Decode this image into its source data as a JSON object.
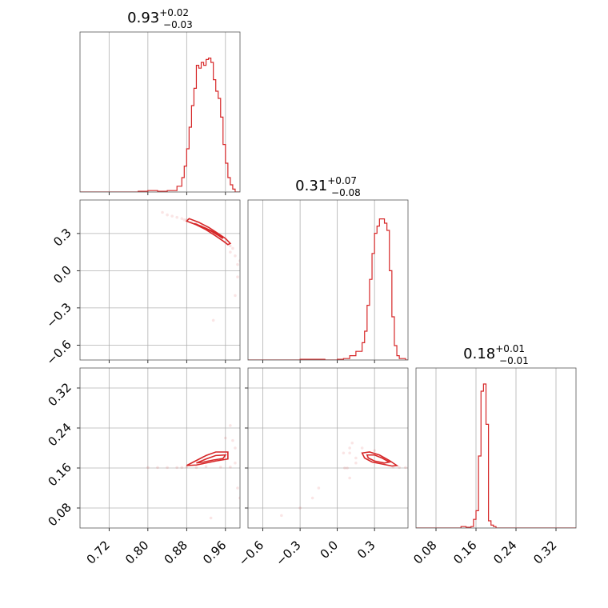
{
  "chart_data": {
    "type": "corner",
    "color": "#d62728",
    "params": [
      {
        "median": "0.93",
        "plus": "+0.02",
        "minus": "−0.03",
        "range": [
          0.66,
          0.99
        ],
        "ticks": [
          0.72,
          0.8,
          0.88,
          0.96
        ],
        "tick_labels": [
          "0.72",
          "0.80",
          "0.88",
          "0.96"
        ]
      },
      {
        "median": "0.31",
        "plus": "+0.07",
        "minus": "−0.08",
        "range": [
          -0.72,
          0.57
        ],
        "ticks": [
          -0.6,
          -0.3,
          0.0,
          0.3
        ],
        "tick_labels": [
          "−0.6",
          "−0.3",
          "0.0",
          "0.3"
        ]
      },
      {
        "median": "0.18",
        "plus": "+0.01",
        "minus": "−0.01",
        "range": [
          0.04,
          0.36
        ],
        "ticks": [
          0.08,
          0.16,
          0.24,
          0.32
        ],
        "tick_labels": [
          "0.08",
          "0.16",
          "0.24",
          "0.32"
        ]
      }
    ],
    "histograms": [
      {
        "x": [
          0.66,
          0.7,
          0.74,
          0.78,
          0.8,
          0.82,
          0.84,
          0.86,
          0.87,
          0.875,
          0.88,
          0.885,
          0.89,
          0.895,
          0.9,
          0.905,
          0.91,
          0.915,
          0.92,
          0.925,
          0.93,
          0.935,
          0.94,
          0.945,
          0.95,
          0.955,
          0.96,
          0.965,
          0.97,
          0.975,
          0.98,
          0.985
        ],
        "y": [
          0.0,
          0.0,
          0.0,
          0.005,
          0.01,
          0.005,
          0.01,
          0.04,
          0.1,
          0.18,
          0.3,
          0.45,
          0.6,
          0.72,
          0.88,
          0.86,
          0.9,
          0.88,
          0.92,
          0.93,
          0.9,
          0.78,
          0.7,
          0.65,
          0.52,
          0.33,
          0.2,
          0.1,
          0.05,
          0.02,
          0.0,
          0.0
        ]
      },
      {
        "x": [
          -0.72,
          -0.6,
          -0.3,
          -0.1,
          0.0,
          0.05,
          0.1,
          0.15,
          0.2,
          0.22,
          0.24,
          0.26,
          0.28,
          0.3,
          0.32,
          0.34,
          0.36,
          0.38,
          0.4,
          0.42,
          0.44,
          0.46,
          0.48,
          0.5,
          0.55
        ],
        "y": [
          0.0,
          0.0,
          0.005,
          0.0,
          0.005,
          0.01,
          0.03,
          0.06,
          0.12,
          0.2,
          0.38,
          0.56,
          0.74,
          0.88,
          0.93,
          0.98,
          0.98,
          0.95,
          0.9,
          0.62,
          0.3,
          0.1,
          0.03,
          0.01,
          0.0
        ]
      },
      {
        "x": [
          0.04,
          0.13,
          0.14,
          0.15,
          0.155,
          0.16,
          0.165,
          0.17,
          0.175,
          0.18,
          0.185,
          0.19,
          0.195,
          0.2,
          0.21,
          0.36
        ],
        "y": [
          0.0,
          0.01,
          0.005,
          0.01,
          0.06,
          0.12,
          0.5,
          0.95,
          1.0,
          0.72,
          0.05,
          0.02,
          0.01,
          0.0,
          0.0,
          0.0
        ]
      }
    ],
    "pairs": [
      {
        "x_param": 0,
        "y_param": 1,
        "contours": [
          [
            [
              0.88,
              0.4
            ],
            [
              0.9,
              0.37
            ],
            [
              0.92,
              0.33
            ],
            [
              0.94,
              0.28
            ],
            [
              0.955,
              0.24
            ],
            [
              0.965,
              0.21
            ],
            [
              0.97,
              0.22
            ],
            [
              0.96,
              0.26
            ],
            [
              0.945,
              0.3
            ],
            [
              0.925,
              0.35
            ],
            [
              0.905,
              0.39
            ],
            [
              0.885,
              0.42
            ]
          ],
          [
            [
              0.895,
              0.38
            ],
            [
              0.91,
              0.355
            ],
            [
              0.93,
              0.32
            ],
            [
              0.945,
              0.285
            ],
            [
              0.955,
              0.26
            ],
            [
              0.95,
              0.28
            ],
            [
              0.935,
              0.315
            ],
            [
              0.915,
              0.35
            ],
            [
              0.9,
              0.375
            ]
          ]
        ],
        "points": [
          [
            0.83,
            0.47
          ],
          [
            0.84,
            0.45
          ],
          [
            0.85,
            0.44
          ],
          [
            0.86,
            0.43
          ],
          [
            0.87,
            0.42
          ],
          [
            0.875,
            0.41
          ],
          [
            0.88,
            0.41
          ],
          [
            0.89,
            0.39
          ],
          [
            0.9,
            0.38
          ],
          [
            0.91,
            0.36
          ],
          [
            0.92,
            0.34
          ],
          [
            0.93,
            0.32
          ],
          [
            0.94,
            0.29
          ],
          [
            0.95,
            0.26
          ],
          [
            0.96,
            0.23
          ],
          [
            0.97,
            0.2
          ],
          [
            0.975,
            0.18
          ],
          [
            0.98,
            0.12
          ],
          [
            0.985,
            0.05
          ],
          [
            0.985,
            -0.05
          ],
          [
            0.98,
            -0.2
          ],
          [
            0.935,
            -0.4
          ],
          [
            0.99,
            0.08
          ],
          [
            0.97,
            0.15
          ]
        ]
      },
      {
        "x_param": 0,
        "y_param": 2,
        "contours": [
          [
            [
              0.88,
              0.165
            ],
            [
              0.9,
              0.175
            ],
            [
              0.92,
              0.185
            ],
            [
              0.94,
              0.192
            ],
            [
              0.965,
              0.192
            ],
            [
              0.965,
              0.178
            ],
            [
              0.94,
              0.174
            ],
            [
              0.92,
              0.17
            ],
            [
              0.9,
              0.166
            ]
          ],
          [
            [
              0.9,
              0.17
            ],
            [
              0.92,
              0.178
            ],
            [
              0.94,
              0.185
            ],
            [
              0.96,
              0.186
            ],
            [
              0.955,
              0.179
            ],
            [
              0.935,
              0.176
            ],
            [
              0.915,
              0.172
            ]
          ]
        ],
        "points": [
          [
            0.8,
            0.161
          ],
          [
            0.82,
            0.161
          ],
          [
            0.84,
            0.161
          ],
          [
            0.86,
            0.161
          ],
          [
            0.87,
            0.161
          ],
          [
            0.88,
            0.162
          ],
          [
            0.9,
            0.161
          ],
          [
            0.92,
            0.163
          ],
          [
            0.95,
            0.162
          ],
          [
            0.97,
            0.162
          ],
          [
            0.98,
            0.17
          ],
          [
            0.98,
            0.2
          ],
          [
            0.975,
            0.215
          ],
          [
            0.96,
            0.22
          ],
          [
            0.985,
            0.12
          ],
          [
            0.99,
            0.1
          ],
          [
            0.93,
            0.06
          ],
          [
            0.97,
            0.245
          ]
        ]
      },
      {
        "x_param": 1,
        "y_param": 2,
        "contours": [
          [
            [
              0.2,
              0.19
            ],
            [
              0.26,
              0.192
            ],
            [
              0.34,
              0.186
            ],
            [
              0.42,
              0.175
            ],
            [
              0.48,
              0.165
            ],
            [
              0.44,
              0.164
            ],
            [
              0.36,
              0.168
            ],
            [
              0.28,
              0.172
            ],
            [
              0.22,
              0.18
            ]
          ],
          [
            [
              0.24,
              0.186
            ],
            [
              0.3,
              0.186
            ],
            [
              0.36,
              0.18
            ],
            [
              0.42,
              0.172
            ],
            [
              0.38,
              0.17
            ],
            [
              0.3,
              0.174
            ],
            [
              0.25,
              0.18
            ]
          ]
        ],
        "points": [
          [
            0.1,
            0.2
          ],
          [
            0.12,
            0.21
          ],
          [
            0.15,
            0.17
          ],
          [
            0.1,
            0.19
          ],
          [
            0.05,
            0.19
          ],
          [
            0.45,
            0.162
          ],
          [
            0.5,
            0.161
          ],
          [
            0.55,
            0.161
          ],
          [
            0.06,
            0.16
          ],
          [
            0.08,
            0.16
          ],
          [
            -0.15,
            0.12
          ],
          [
            -0.2,
            0.1
          ],
          [
            -0.3,
            0.08
          ],
          [
            -0.45,
            0.065
          ],
          [
            0.1,
            0.14
          ],
          [
            0.15,
            0.18
          ],
          [
            0.2,
            0.2
          ],
          [
            0.3,
            0.195
          ]
        ]
      }
    ]
  }
}
